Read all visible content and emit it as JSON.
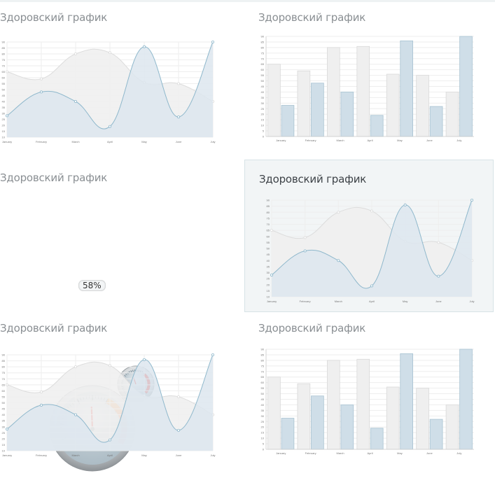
{
  "panels": [
    {
      "id": "p1",
      "title": "Здоровский график",
      "kind": "line"
    },
    {
      "id": "p2",
      "title": "Здоровский график",
      "kind": "bar"
    },
    {
      "id": "p3",
      "title": "Здоровский график",
      "kind": "gauge"
    },
    {
      "id": "p4",
      "title": "Здоровский график",
      "kind": "line"
    },
    {
      "id": "p5",
      "title": "Здоровский график",
      "kind": "line"
    },
    {
      "id": "p6",
      "title": "Здоровский график",
      "kind": "bar"
    }
  ],
  "colors": {
    "series_a_fill": "#f0f0f0",
    "series_a_line": "#dcdcdc",
    "series_b_fill": "#dde6ee",
    "series_b_line": "#8fb8cc",
    "bar_a": "#efefef",
    "bar_a_border": "#d9d9d9",
    "bar_b": "#cfdee8",
    "bar_b_border": "#a9c3d2",
    "grid": "#eeeeee",
    "gauge_red": "#e8170b"
  },
  "chart_data": [
    {
      "type": "area",
      "categories": [
        "January",
        "February",
        "March",
        "April",
        "May",
        "June",
        "July"
      ],
      "series": [
        {
          "values": [
            65,
            59,
            80,
            81,
            56,
            55,
            40
          ]
        },
        {
          "values": [
            28,
            48,
            40,
            19,
            86,
            27,
            90
          ]
        }
      ],
      "ylim": [
        10,
        90
      ],
      "yticks": [
        "10",
        "15",
        "20",
        "25",
        "30",
        "35",
        "40",
        "45",
        "50",
        "55",
        "60",
        "65",
        "70",
        "75",
        "80",
        "85",
        "90"
      ],
      "grid": true
    },
    {
      "type": "bar",
      "categories": [
        "January",
        "February",
        "March",
        "April",
        "May",
        "June",
        "July"
      ],
      "series": [
        {
          "values": [
            65,
            59,
            80,
            81,
            56,
            55,
            40
          ]
        },
        {
          "values": [
            28,
            48,
            40,
            19,
            86,
            27,
            90
          ]
        }
      ],
      "ylim": [
        0,
        90
      ],
      "yticks": [
        "0",
        "5",
        "10",
        "15",
        "20",
        "25",
        "30",
        "35",
        "40",
        "45",
        "50",
        "55",
        "60",
        "65",
        "70",
        "75",
        "80",
        "85",
        "90"
      ],
      "grid": true
    },
    {
      "type": "gauge",
      "value": 58,
      "label": "58%",
      "range": [
        0,
        100
      ]
    },
    {
      "type": "area",
      "categories": [
        "January",
        "February",
        "March",
        "April",
        "May",
        "June",
        "July"
      ],
      "series": [
        {
          "values": [
            65,
            59,
            80,
            81,
            56,
            55,
            40
          ]
        },
        {
          "values": [
            28,
            48,
            40,
            19,
            86,
            27,
            90
          ]
        }
      ],
      "ylim": [
        10,
        90
      ],
      "yticks": [
        "10",
        "15",
        "20",
        "25",
        "30",
        "35",
        "40",
        "45",
        "50",
        "55",
        "60",
        "65",
        "70",
        "75",
        "80",
        "85",
        "90"
      ],
      "grid": true
    },
    {
      "type": "area",
      "categories": [
        "January",
        "February",
        "March",
        "April",
        "May",
        "June",
        "July"
      ],
      "series": [
        {
          "values": [
            65,
            59,
            80,
            81,
            56,
            55,
            40
          ]
        },
        {
          "values": [
            28,
            48,
            40,
            19,
            86,
            27,
            90
          ]
        }
      ],
      "ylim": [
        10,
        90
      ],
      "yticks": [
        "10",
        "15",
        "20",
        "25",
        "30",
        "35",
        "40",
        "45",
        "50",
        "55",
        "60",
        "65",
        "70",
        "75",
        "80",
        "85",
        "90"
      ],
      "grid": true
    },
    {
      "type": "bar",
      "categories": [
        "January",
        "February",
        "March",
        "April",
        "May",
        "June",
        "July"
      ],
      "series": [
        {
          "values": [
            65,
            59,
            80,
            81,
            56,
            55,
            40
          ]
        },
        {
          "values": [
            28,
            48,
            40,
            19,
            86,
            27,
            90
          ]
        }
      ],
      "ylim": [
        0,
        90
      ],
      "yticks": [
        "0",
        "5",
        "10",
        "15",
        "20",
        "25",
        "30",
        "35",
        "40",
        "45",
        "50",
        "55",
        "60",
        "65",
        "70",
        "75",
        "80",
        "85",
        "90"
      ],
      "grid": true
    }
  ]
}
